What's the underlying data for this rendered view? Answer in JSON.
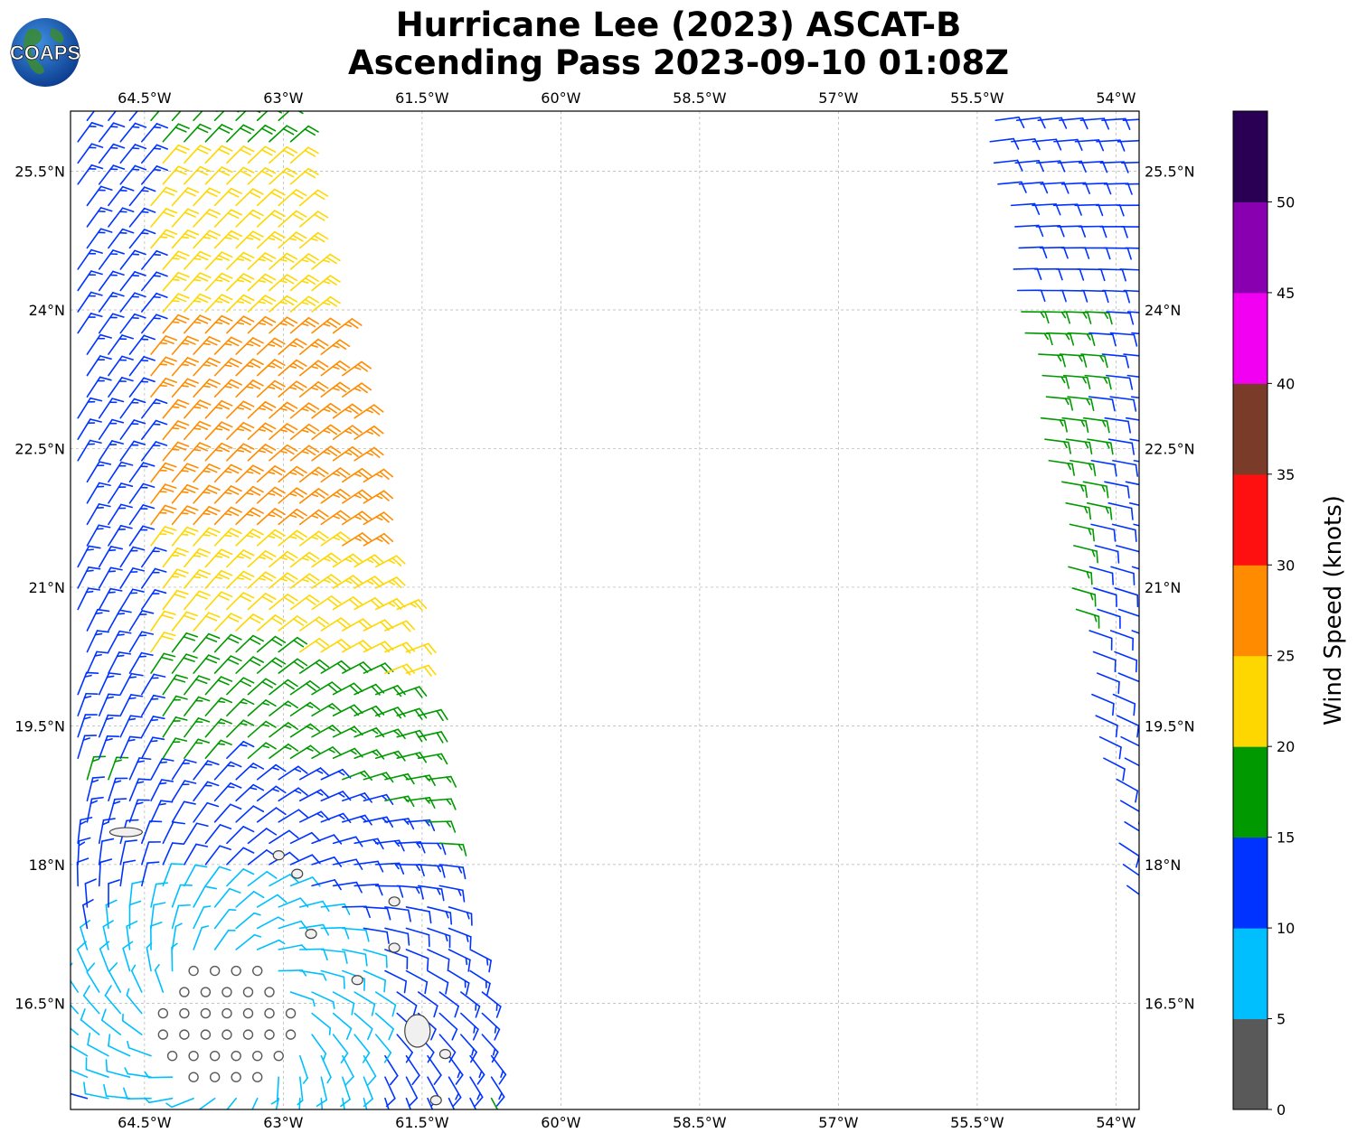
{
  "title": {
    "line1": "Hurricane Lee (2023) ASCAT-B",
    "line2": "Ascending Pass 2023-09-10 01:08Z"
  },
  "logo": {
    "text": "COAPS",
    "icon": "globe-logo-icon"
  },
  "map": {
    "lon_range": [
      -65.3,
      -53.75
    ],
    "lat_range": [
      15.35,
      26.15
    ],
    "lon_ticks": [
      {
        "value": -64.5,
        "label": "64.5°W"
      },
      {
        "value": -63.0,
        "label": "63°W"
      },
      {
        "value": -61.5,
        "label": "61.5°W"
      },
      {
        "value": -60.0,
        "label": "60°W"
      },
      {
        "value": -58.5,
        "label": "58.5°W"
      },
      {
        "value": -57.0,
        "label": "57°W"
      },
      {
        "value": -55.5,
        "label": "55.5°W"
      },
      {
        "value": -54.0,
        "label": "54°W"
      }
    ],
    "lat_ticks": [
      {
        "value": 25.5,
        "label": "25.5°N"
      },
      {
        "value": 24.0,
        "label": "24°N"
      },
      {
        "value": 22.5,
        "label": "22.5°N"
      },
      {
        "value": 21.0,
        "label": "21°N"
      },
      {
        "value": 19.5,
        "label": "19.5°N"
      },
      {
        "value": 18.0,
        "label": "18°N"
      },
      {
        "value": 16.5,
        "label": "16.5°N"
      }
    ],
    "grid": true,
    "storm_center": {
      "lon": -63.6,
      "lat": 16.3
    },
    "islands": [
      {
        "name": "virgin-islands",
        "lon": -64.7,
        "lat": 18.35
      },
      {
        "name": "anguilla-st-martin",
        "lon": -63.05,
        "lat": 18.1
      },
      {
        "name": "st-barthelemy",
        "lon": -62.85,
        "lat": 17.9
      },
      {
        "name": "st-kitts-nevis",
        "lon": -62.7,
        "lat": 17.25
      },
      {
        "name": "antigua",
        "lon": -61.8,
        "lat": 17.1
      },
      {
        "name": "barbuda",
        "lon": -61.8,
        "lat": 17.6
      },
      {
        "name": "montserrat",
        "lon": -62.2,
        "lat": 16.75
      },
      {
        "name": "guadeloupe",
        "lon": -61.55,
        "lat": 16.2
      },
      {
        "name": "dominica",
        "lon": -61.35,
        "lat": 15.45
      },
      {
        "name": "marie-galante",
        "lon": -61.25,
        "lat": 15.95
      }
    ],
    "swaths": [
      {
        "name": "west-swath",
        "west_edge": [
          [
            -65.3,
            15.35
          ],
          [
            -65.3,
            26.15
          ]
        ],
        "east_edge": [
          [
            -60.5,
            15.35
          ],
          [
            -62.9,
            26.15
          ]
        ]
      },
      {
        "name": "east-swath",
        "west_edge": [
          [
            -54.0,
            18.0
          ],
          [
            -55.5,
            26.15
          ]
        ],
        "east_edge": [
          [
            -53.75,
            18.0
          ],
          [
            -53.75,
            26.15
          ]
        ]
      }
    ]
  },
  "colorbar": {
    "label": "Wind Speed (knots)",
    "ticks": [
      "0",
      "5",
      "10",
      "15",
      "20",
      "25",
      "30",
      "35",
      "40",
      "45",
      "50"
    ],
    "bins": [
      {
        "min": 0,
        "max": 5,
        "color": "#595959"
      },
      {
        "min": 5,
        "max": 10,
        "color": "#00bfff"
      },
      {
        "min": 10,
        "max": 15,
        "color": "#0033ff"
      },
      {
        "min": 15,
        "max": 20,
        "color": "#009900"
      },
      {
        "min": 20,
        "max": 25,
        "color": "#ffd700"
      },
      {
        "min": 25,
        "max": 30,
        "color": "#ff8c00"
      },
      {
        "min": 30,
        "max": 35,
        "color": "#ff1010"
      },
      {
        "min": 35,
        "max": 40,
        "color": "#7b3b29"
      },
      {
        "min": 40,
        "max": 45,
        "color": "#f200f2"
      },
      {
        "min": 45,
        "max": 50,
        "color": "#8800b0"
      },
      {
        "min": 50,
        "max": 55,
        "color": "#2a0055"
      }
    ]
  }
}
